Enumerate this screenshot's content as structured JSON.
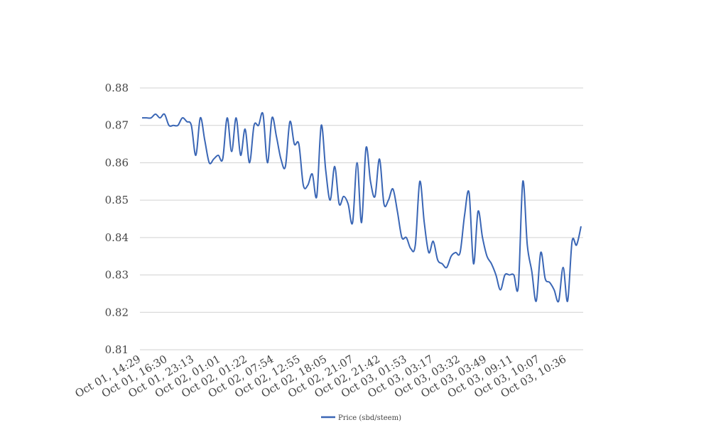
{
  "chart_data": {
    "type": "line",
    "title": "",
    "xlabel": "",
    "ylabel": "",
    "ylim": [
      0.81,
      0.88
    ],
    "yticks": [
      "0.81",
      "0.82",
      "0.83",
      "0.84",
      "0.85",
      "0.86",
      "0.87",
      "0.88"
    ],
    "xtick_labels": [
      "Oct 01, 14:29",
      "Oct 01, 16:30",
      "Oct 01, 23:13",
      "Oct 02, 01:01",
      "Oct 02, 01:22",
      "Oct 02, 07:54",
      "Oct 02, 12:55",
      "Oct 02, 18:05",
      "Oct 02, 21:07",
      "Oct 02, 21:42",
      "Oct 03, 01:53",
      "Oct 03, 03:17",
      "Oct 03, 03:32",
      "Oct 03, 03:49",
      "Oct 03, 09:11",
      "Oct 03, 10:07",
      "Oct 03, 10:36"
    ],
    "grid": true,
    "legend_position": "bottom",
    "series": [
      {
        "name": "Price (sbd/steem)",
        "color": "#3a66b5",
        "values": [
          0.872,
          0.872,
          0.872,
          0.873,
          0.872,
          0.873,
          0.87,
          0.87,
          0.87,
          0.872,
          0.871,
          0.87,
          0.862,
          0.872,
          0.866,
          0.86,
          0.861,
          0.862,
          0.861,
          0.872,
          0.863,
          0.872,
          0.862,
          0.869,
          0.86,
          0.87,
          0.87,
          0.873,
          0.86,
          0.872,
          0.867,
          0.861,
          0.859,
          0.871,
          0.865,
          0.865,
          0.854,
          0.854,
          0.857,
          0.851,
          0.87,
          0.858,
          0.85,
          0.859,
          0.849,
          0.851,
          0.849,
          0.844,
          0.86,
          0.844,
          0.864,
          0.855,
          0.851,
          0.861,
          0.849,
          0.85,
          0.853,
          0.847,
          0.84,
          0.84,
          0.837,
          0.838,
          0.855,
          0.844,
          0.836,
          0.839,
          0.834,
          0.833,
          0.832,
          0.835,
          0.836,
          0.836,
          0.846,
          0.852,
          0.833,
          0.847,
          0.84,
          0.835,
          0.833,
          0.83,
          0.826,
          0.83,
          0.83,
          0.83,
          0.827,
          0.855,
          0.838,
          0.831,
          0.823,
          0.836,
          0.829,
          0.828,
          0.826,
          0.823,
          0.832,
          0.823,
          0.839,
          0.838,
          0.843
        ]
      }
    ]
  }
}
